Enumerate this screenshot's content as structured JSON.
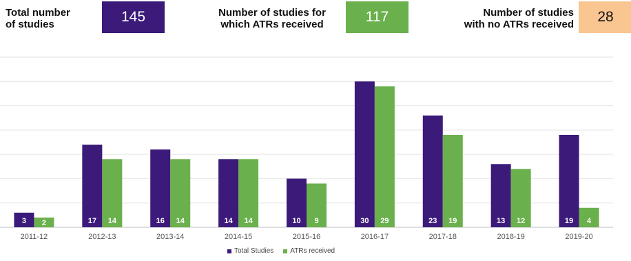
{
  "kpis": {
    "total": {
      "label_line1": "Total number",
      "label_line2": "of studies",
      "value": "145",
      "color": "#3c1a7a",
      "text_color": "#ffffff"
    },
    "received": {
      "label_line1": "Number of studies for",
      "label_line2": "which ATRs received",
      "value": "117",
      "color": "#6ab04c",
      "text_color": "#ffffff"
    },
    "not_received": {
      "label_line1": "Number of studies",
      "label_line2": "with no ATRs received",
      "value": "28",
      "color": "#f9c591",
      "text_color": "#111111"
    }
  },
  "chart_data": {
    "type": "bar",
    "categories": [
      "2011-12",
      "2012-13",
      "2013-14",
      "2014-15",
      "2015-16",
      "2016-17",
      "2017-18",
      "2018-19",
      "2019-20"
    ],
    "series": [
      {
        "name": "Total Studies",
        "values": [
          3,
          17,
          16,
          14,
          10,
          30,
          23,
          13,
          19
        ],
        "color": "#3c1a7a"
      },
      {
        "name": "ATRs received",
        "values": [
          2,
          14,
          14,
          14,
          9,
          29,
          19,
          12,
          4
        ],
        "color": "#6ab04c"
      }
    ],
    "ylim": [
      0,
      35
    ],
    "grid": true,
    "data_labels": true,
    "legend": "bottom-center"
  }
}
